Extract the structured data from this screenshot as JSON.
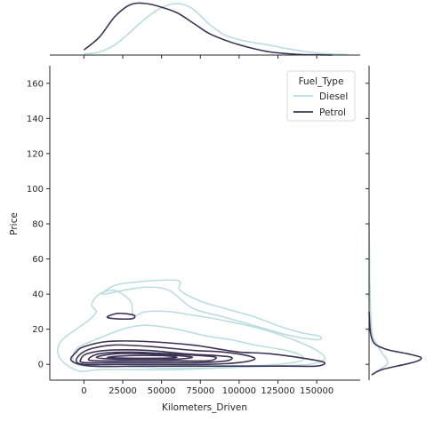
{
  "chart_data": {
    "type": "joint-kde",
    "xlabel": "Kilometers_Driven",
    "ylabel": "Price",
    "xlim": [
      -22000,
      178000
    ],
    "ylim": [
      -9,
      170
    ],
    "x_ticks": [
      0,
      25000,
      50000,
      75000,
      100000,
      125000,
      150000
    ],
    "y_ticks": [
      0,
      20,
      40,
      60,
      80,
      100,
      120,
      140,
      160
    ],
    "grid": false,
    "legend": {
      "title": "Fuel_Type",
      "placement": "top-right"
    },
    "series": [
      {
        "name": "Diesel",
        "color": "#b9dcdf",
        "marginal_x": {
          "x": [
            0,
            10000,
            20000,
            30000,
            40000,
            50000,
            60000,
            70000,
            80000,
            90000,
            100000,
            110000,
            120000,
            130000,
            140000,
            150000,
            160000,
            170000
          ],
          "density": [
            0.02,
            0.06,
            0.2,
            0.45,
            0.72,
            0.92,
            1.0,
            0.9,
            0.62,
            0.4,
            0.3,
            0.24,
            0.19,
            0.13,
            0.08,
            0.04,
            0.02,
            0.01
          ]
        },
        "marginal_y": {
          "y": [
            -6,
            -3,
            0,
            3,
            6,
            9,
            12,
            15,
            20,
            30,
            40,
            50,
            60,
            70,
            80
          ],
          "density": [
            0.05,
            0.2,
            0.35,
            0.34,
            0.26,
            0.2,
            0.14,
            0.08,
            0.05,
            0.03,
            0.02,
            0.01,
            0.01,
            0.005,
            0
          ]
        },
        "contours": [
          {
            "level": "outer",
            "points": [
              [
                -2000,
                -4
              ],
              [
                10000,
                -3
              ],
              [
                30000,
                -3
              ],
              [
                60000,
                -3
              ],
              [
                90000,
                -2
              ],
              [
                120000,
                -1
              ],
              [
                145000,
                0
              ],
              [
                155000,
                3
              ],
              [
                150000,
                8
              ],
              [
                135000,
                14
              ],
              [
                115000,
                20
              ],
              [
                90000,
                25
              ],
              [
                70000,
                28
              ],
              [
                55000,
                30
              ],
              [
                40000,
                30
              ],
              [
                32000,
                28
              ],
              [
                30000,
                36
              ],
              [
                20000,
                42
              ],
              [
                10000,
                40
              ],
              [
                5000,
                34
              ],
              [
                8000,
                30
              ],
              [
                3000,
                25
              ],
              [
                -5000,
                20
              ],
              [
                -14000,
                14
              ],
              [
                -17000,
                8
              ],
              [
                -15000,
                3
              ],
              [
                -10000,
                -1
              ],
              [
                -2000,
                -4
              ]
            ]
          },
          {
            "level": "upper",
            "points": [
              [
                12000,
                40
              ],
              [
                20000,
                45
              ],
              [
                35000,
                47
              ],
              [
                55000,
                48
              ],
              [
                62000,
                47
              ],
              [
                62000,
                42
              ],
              [
                75000,
                36
              ],
              [
                90000,
                32
              ],
              [
                110000,
                27
              ],
              [
                125000,
                22
              ],
              [
                140000,
                18
              ],
              [
                152000,
                16
              ],
              [
                150000,
                14
              ],
              [
                130000,
                17
              ],
              [
                110000,
                22
              ],
              [
                90000,
                27
              ],
              [
                70000,
                32
              ],
              [
                55000,
                42
              ],
              [
                40000,
                44
              ],
              [
                25000,
                42
              ],
              [
                12000,
                40
              ]
            ]
          },
          {
            "level": "mid",
            "points": [
              [
                0,
                -1
              ],
              [
                20000,
                -1
              ],
              [
                50000,
                -2
              ],
              [
                80000,
                -2
              ],
              [
                105000,
                -1
              ],
              [
                125000,
                0
              ],
              [
                140000,
                2
              ],
              [
                140000,
                5
              ],
              [
                130000,
                8
              ],
              [
                110000,
                11
              ],
              [
                95000,
                14
              ],
              [
                80000,
                16
              ],
              [
                60000,
                20
              ],
              [
                45000,
                22
              ],
              [
                35000,
                22
              ],
              [
                25000,
                20
              ],
              [
                10000,
                15
              ],
              [
                -3000,
                10
              ],
              [
                -7000,
                5
              ],
              [
                -6000,
                1
              ],
              [
                0,
                -1
              ]
            ]
          }
        ]
      },
      {
        "name": "Petrol",
        "color": "#3b3355",
        "marginal_x": {
          "x": [
            0,
            10000,
            20000,
            30000,
            40000,
            50000,
            60000,
            70000,
            80000,
            90000,
            100000,
            110000,
            120000,
            130000,
            140000,
            150000,
            160000
          ],
          "density": [
            0.1,
            0.35,
            0.75,
            0.98,
            1.0,
            0.93,
            0.82,
            0.63,
            0.43,
            0.3,
            0.2,
            0.12,
            0.06,
            0.03,
            0.01,
            0.005,
            0
          ]
        },
        "marginal_y": {
          "y": [
            -6,
            -3,
            0,
            2,
            4,
            6,
            8,
            10,
            12,
            15,
            20,
            30
          ],
          "density": [
            0.05,
            0.25,
            0.7,
            0.95,
            1.0,
            0.75,
            0.4,
            0.2,
            0.1,
            0.05,
            0.02,
            0
          ]
        },
        "contours": [
          {
            "level": "l1",
            "points": [
              [
                -8000,
                2
              ],
              [
                -5000,
                7
              ],
              [
                0,
                10
              ],
              [
                15000,
                13
              ],
              [
                40000,
                13
              ],
              [
                70000,
                11
              ],
              [
                85000,
                9
              ],
              [
                100000,
                7
              ],
              [
                120000,
                6
              ],
              [
                145000,
                3
              ],
              [
                155000,
                1
              ],
              [
                150000,
                -1
              ],
              [
                130000,
                -1
              ],
              [
                100000,
                -1
              ],
              [
                70000,
                -1
              ],
              [
                35000,
                -1
              ],
              [
                5000,
                -1
              ],
              [
                -8000,
                2
              ]
            ]
          },
          {
            "level": "l2",
            "points": [
              [
                -5000,
                2
              ],
              [
                -2000,
                6
              ],
              [
                5000,
                9
              ],
              [
                20000,
                11
              ],
              [
                45000,
                10
              ],
              [
                70000,
                8
              ],
              [
                90000,
                7
              ],
              [
                105000,
                5
              ],
              [
                110000,
                3
              ],
              [
                100000,
                1
              ],
              [
                80000,
                0
              ],
              [
                50000,
                0
              ],
              [
                20000,
                0
              ],
              [
                0,
                0
              ],
              [
                -5000,
                2
              ]
            ]
          },
          {
            "level": "l3",
            "points": [
              [
                -2000,
                3
              ],
              [
                2000,
                6
              ],
              [
                15000,
                8
              ],
              [
                40000,
                8
              ],
              [
                65000,
                6
              ],
              [
                85000,
                5
              ],
              [
                95000,
                4
              ],
              [
                92000,
                2
              ],
              [
                75000,
                1
              ],
              [
                50000,
                1
              ],
              [
                20000,
                1
              ],
              [
                0,
                1
              ],
              [
                -2000,
                3
              ]
            ]
          },
          {
            "level": "l4",
            "points": [
              [
                3000,
                3
              ],
              [
                10000,
                6
              ],
              [
                30000,
                7
              ],
              [
                55000,
                6
              ],
              [
                75000,
                5
              ],
              [
                85000,
                4
              ],
              [
                80000,
                2
              ],
              [
                60000,
                2
              ],
              [
                30000,
                2
              ],
              [
                8000,
                2
              ],
              [
                3000,
                3
              ]
            ]
          },
          {
            "level": "l5",
            "points": [
              [
                8000,
                4
              ],
              [
                20000,
                6
              ],
              [
                40000,
                6
              ],
              [
                60000,
                5
              ],
              [
                70000,
                4
              ],
              [
                60000,
                3
              ],
              [
                40000,
                3
              ],
              [
                20000,
                3
              ],
              [
                8000,
                4
              ]
            ]
          },
          {
            "level": "l6",
            "points": [
              [
                15000,
                4
              ],
              [
                30000,
                5
              ],
              [
                50000,
                5
              ],
              [
                60000,
                4
              ],
              [
                50000,
                3.5
              ],
              [
                30000,
                3.5
              ],
              [
                15000,
                4
              ]
            ]
          },
          {
            "level": "blob",
            "points": [
              [
                15000,
                27
              ],
              [
                22000,
                29
              ],
              [
                32000,
                28
              ],
              [
                31000,
                26
              ],
              [
                20000,
                26
              ],
              [
                15000,
                27
              ]
            ]
          }
        ]
      }
    ]
  }
}
